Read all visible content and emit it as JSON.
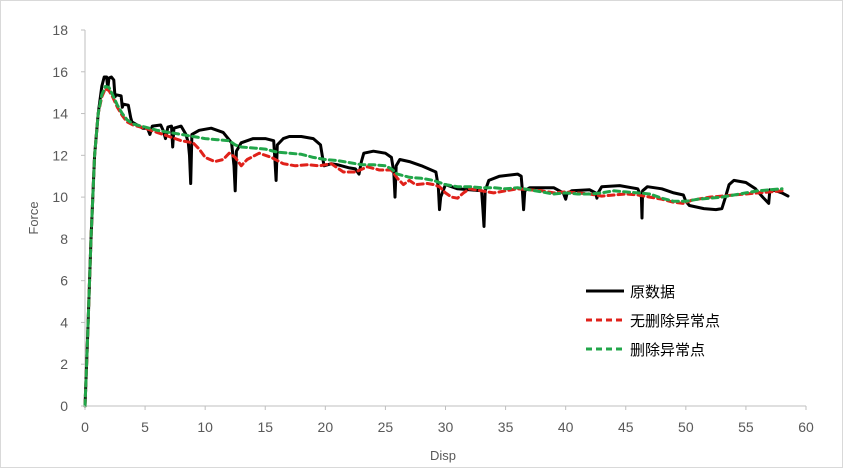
{
  "chart_data": {
    "type": "line",
    "title": "",
    "xlabel": "Disp",
    "ylabel": "Force",
    "xlim": [
      0,
      60
    ],
    "ylim": [
      0,
      18
    ],
    "xticks": [
      "0",
      "5",
      "10",
      "15",
      "20",
      "25",
      "30",
      "35",
      "40",
      "45",
      "50",
      "55",
      "60"
    ],
    "yticks": [
      "0",
      "2",
      "4",
      "6",
      "8",
      "10",
      "12",
      "14",
      "16",
      "18"
    ],
    "grid": false,
    "legend_position": "right",
    "series": [
      {
        "name": "原数据",
        "color": "#000000",
        "style": "solid",
        "points": [
          [
            0,
            0
          ],
          [
            0.2,
            3
          ],
          [
            0.5,
            8
          ],
          [
            0.8,
            12
          ],
          [
            1.1,
            14
          ],
          [
            1.4,
            15.3
          ],
          [
            1.6,
            15.75
          ],
          [
            1.8,
            15.75
          ],
          [
            1.9,
            15.2
          ],
          [
            2.0,
            15.7
          ],
          [
            2.2,
            15.75
          ],
          [
            2.4,
            15.6
          ],
          [
            2.5,
            14.8
          ],
          [
            2.6,
            14.9
          ],
          [
            3.0,
            14.85
          ],
          [
            3.1,
            14.3
          ],
          [
            3.2,
            14.45
          ],
          [
            3.6,
            14.4
          ],
          [
            3.8,
            13.8
          ],
          [
            3.9,
            13.6
          ],
          [
            4.2,
            13.5
          ],
          [
            4.5,
            13.4
          ],
          [
            4.8,
            13.3
          ],
          [
            5.2,
            13.3
          ],
          [
            5.4,
            13.0
          ],
          [
            5.6,
            13.4
          ],
          [
            6.3,
            13.45
          ],
          [
            6.5,
            13.2
          ],
          [
            6.7,
            12.8
          ],
          [
            6.9,
            13.35
          ],
          [
            7.2,
            13.4
          ],
          [
            7.3,
            12.4
          ],
          [
            7.4,
            13.3
          ],
          [
            8.0,
            13.4
          ],
          [
            8.4,
            13.0
          ],
          [
            8.6,
            12.6
          ],
          [
            8.7,
            12.0
          ],
          [
            8.8,
            10.65
          ],
          [
            8.9,
            13.0
          ],
          [
            9.5,
            13.2
          ],
          [
            10.5,
            13.3
          ],
          [
            11.5,
            13.1
          ],
          [
            12.2,
            12.6
          ],
          [
            12.4,
            11.5
          ],
          [
            12.5,
            10.3
          ],
          [
            12.6,
            12.2
          ],
          [
            13.0,
            12.6
          ],
          [
            14.0,
            12.8
          ],
          [
            15.0,
            12.8
          ],
          [
            15.7,
            12.7
          ],
          [
            15.8,
            11.8
          ],
          [
            15.9,
            10.8
          ],
          [
            16.0,
            12.5
          ],
          [
            16.5,
            12.8
          ],
          [
            17.0,
            12.9
          ],
          [
            18.0,
            12.9
          ],
          [
            19.0,
            12.8
          ],
          [
            19.6,
            12.5
          ],
          [
            19.8,
            11.8
          ],
          [
            19.9,
            11.5
          ],
          [
            20.5,
            11.6
          ],
          [
            21.0,
            11.55
          ],
          [
            22.0,
            11.4
          ],
          [
            22.5,
            11.35
          ],
          [
            22.8,
            11.1
          ],
          [
            23.0,
            11.7
          ],
          [
            23.2,
            12.1
          ],
          [
            24.0,
            12.2
          ],
          [
            25.0,
            12.1
          ],
          [
            25.5,
            11.9
          ],
          [
            25.7,
            11.2
          ],
          [
            25.8,
            10.0
          ],
          [
            25.9,
            11.5
          ],
          [
            26.2,
            11.8
          ],
          [
            27.0,
            11.7
          ],
          [
            28.0,
            11.5
          ],
          [
            29.2,
            11.2
          ],
          [
            29.4,
            10.5
          ],
          [
            29.5,
            9.4
          ],
          [
            29.6,
            10.0
          ],
          [
            30.0,
            10.6
          ],
          [
            31.0,
            10.4
          ],
          [
            32.0,
            10.35
          ],
          [
            33.0,
            10.3
          ],
          [
            33.1,
            9.5
          ],
          [
            33.2,
            8.6
          ],
          [
            33.3,
            10.3
          ],
          [
            33.6,
            10.8
          ],
          [
            34.5,
            11.0
          ],
          [
            36.0,
            11.1
          ],
          [
            36.3,
            11.0
          ],
          [
            36.4,
            10.3
          ],
          [
            36.5,
            9.4
          ],
          [
            36.6,
            10.3
          ],
          [
            37.0,
            10.45
          ],
          [
            39.0,
            10.45
          ],
          [
            39.8,
            10.2
          ],
          [
            40.0,
            9.9
          ],
          [
            40.1,
            10.15
          ],
          [
            40.5,
            10.3
          ],
          [
            42.0,
            10.35
          ],
          [
            42.5,
            10.2
          ],
          [
            42.6,
            9.95
          ],
          [
            42.7,
            10.2
          ],
          [
            43.0,
            10.5
          ],
          [
            44.5,
            10.55
          ],
          [
            46.0,
            10.4
          ],
          [
            46.3,
            10.0
          ],
          [
            46.35,
            9.0
          ],
          [
            46.4,
            10.3
          ],
          [
            46.8,
            10.5
          ],
          [
            48.0,
            10.4
          ],
          [
            49.0,
            10.2
          ],
          [
            49.8,
            10.1
          ],
          [
            50.0,
            9.8
          ],
          [
            50.3,
            9.6
          ],
          [
            51.5,
            9.45
          ],
          [
            52.5,
            9.4
          ],
          [
            53.0,
            9.45
          ],
          [
            53.3,
            10.0
          ],
          [
            53.6,
            10.6
          ],
          [
            54.0,
            10.8
          ],
          [
            55.0,
            10.7
          ],
          [
            55.8,
            10.4
          ],
          [
            56.4,
            10.0
          ],
          [
            56.9,
            9.7
          ],
          [
            57.0,
            10.35
          ],
          [
            57.5,
            10.3
          ],
          [
            58.0,
            10.2
          ],
          [
            58.5,
            10.05
          ]
        ]
      },
      {
        "name": "无删除异常点",
        "color": "#e0211a",
        "style": "dashed",
        "points": [
          [
            0,
            0
          ],
          [
            0.2,
            3
          ],
          [
            0.5,
            8
          ],
          [
            0.8,
            12
          ],
          [
            1.1,
            14
          ],
          [
            1.4,
            14.8
          ],
          [
            1.7,
            15.2
          ],
          [
            2.0,
            15.1
          ],
          [
            2.3,
            14.8
          ],
          [
            2.7,
            14.3
          ],
          [
            3.1,
            13.9
          ],
          [
            3.5,
            13.6
          ],
          [
            4.0,
            13.45
          ],
          [
            5.0,
            13.3
          ],
          [
            6.0,
            13.1
          ],
          [
            7.0,
            12.9
          ],
          [
            8.0,
            12.7
          ],
          [
            9.0,
            12.6
          ],
          [
            9.5,
            12.3
          ],
          [
            10.0,
            11.9
          ],
          [
            10.8,
            11.7
          ],
          [
            11.5,
            11.8
          ],
          [
            12.0,
            12.1
          ],
          [
            12.5,
            11.9
          ],
          [
            13.0,
            11.5
          ],
          [
            13.5,
            11.8
          ],
          [
            14.5,
            12.1
          ],
          [
            15.5,
            11.9
          ],
          [
            16.5,
            11.6
          ],
          [
            17.5,
            11.5
          ],
          [
            18.5,
            11.55
          ],
          [
            19.5,
            11.5
          ],
          [
            20.5,
            11.6
          ],
          [
            21.5,
            11.2
          ],
          [
            22.5,
            11.2
          ],
          [
            23.5,
            11.45
          ],
          [
            24.5,
            11.3
          ],
          [
            25.5,
            11.3
          ],
          [
            26.0,
            10.9
          ],
          [
            26.5,
            10.6
          ],
          [
            27.0,
            10.8
          ],
          [
            27.5,
            10.6
          ],
          [
            28.5,
            10.65
          ],
          [
            29.0,
            10.6
          ],
          [
            29.5,
            10.5
          ],
          [
            30.0,
            10.2
          ],
          [
            30.5,
            10.0
          ],
          [
            31.0,
            9.95
          ],
          [
            31.5,
            10.2
          ],
          [
            32.0,
            10.4
          ],
          [
            33.0,
            10.3
          ],
          [
            34.0,
            10.2
          ],
          [
            35.0,
            10.3
          ],
          [
            36.0,
            10.4
          ],
          [
            37.0,
            10.35
          ],
          [
            38.0,
            10.3
          ],
          [
            39.0,
            10.2
          ],
          [
            40.0,
            10.25
          ],
          [
            41.0,
            10.2
          ],
          [
            42.0,
            10.15
          ],
          [
            43.0,
            10.05
          ],
          [
            44.0,
            10.1
          ],
          [
            45.0,
            10.15
          ],
          [
            46.0,
            10.1
          ],
          [
            47.0,
            10.0
          ],
          [
            48.0,
            9.9
          ],
          [
            49.0,
            9.75
          ],
          [
            49.8,
            9.7
          ],
          [
            50.5,
            9.85
          ],
          [
            51.0,
            9.9
          ],
          [
            52.0,
            10.0
          ],
          [
            53.0,
            10.05
          ],
          [
            54.0,
            10.1
          ],
          [
            55.0,
            10.15
          ],
          [
            56.0,
            10.2
          ],
          [
            57.0,
            10.25
          ],
          [
            58.0,
            10.3
          ]
        ]
      },
      {
        "name": "删除异常点",
        "color": "#21a64a",
        "style": "dashed",
        "points": [
          [
            0,
            0
          ],
          [
            0.2,
            3
          ],
          [
            0.5,
            8
          ],
          [
            0.8,
            12
          ],
          [
            1.1,
            14
          ],
          [
            1.4,
            14.9
          ],
          [
            1.7,
            15.3
          ],
          [
            2.0,
            15.25
          ],
          [
            2.3,
            14.9
          ],
          [
            2.7,
            14.4
          ],
          [
            3.1,
            14.0
          ],
          [
            3.5,
            13.7
          ],
          [
            4.0,
            13.5
          ],
          [
            5.0,
            13.35
          ],
          [
            6.0,
            13.2
          ],
          [
            7.0,
            13.1
          ],
          [
            8.0,
            13.0
          ],
          [
            9.0,
            12.9
          ],
          [
            10.0,
            12.8
          ],
          [
            11.0,
            12.75
          ],
          [
            12.0,
            12.7
          ],
          [
            12.5,
            12.5
          ],
          [
            13.0,
            12.4
          ],
          [
            14.0,
            12.35
          ],
          [
            15.0,
            12.3
          ],
          [
            16.0,
            12.15
          ],
          [
            17.0,
            12.1
          ],
          [
            18.0,
            12.05
          ],
          [
            19.0,
            11.9
          ],
          [
            20.0,
            11.8
          ],
          [
            21.0,
            11.75
          ],
          [
            22.0,
            11.65
          ],
          [
            23.0,
            11.55
          ],
          [
            24.0,
            11.55
          ],
          [
            25.0,
            11.5
          ],
          [
            25.5,
            11.35
          ],
          [
            26.0,
            11.1
          ],
          [
            27.0,
            10.95
          ],
          [
            28.0,
            10.9
          ],
          [
            29.0,
            10.8
          ],
          [
            30.0,
            10.6
          ],
          [
            31.0,
            10.5
          ],
          [
            32.0,
            10.5
          ],
          [
            33.0,
            10.45
          ],
          [
            34.0,
            10.45
          ],
          [
            35.0,
            10.4
          ],
          [
            36.0,
            10.45
          ],
          [
            37.0,
            10.35
          ],
          [
            38.0,
            10.25
          ],
          [
            39.0,
            10.15
          ],
          [
            40.0,
            10.2
          ],
          [
            41.0,
            10.15
          ],
          [
            42.0,
            10.15
          ],
          [
            43.0,
            10.2
          ],
          [
            44.0,
            10.3
          ],
          [
            45.0,
            10.25
          ],
          [
            46.0,
            10.2
          ],
          [
            47.0,
            10.15
          ],
          [
            48.0,
            9.95
          ],
          [
            49.0,
            9.8
          ],
          [
            50.0,
            9.8
          ],
          [
            51.0,
            9.9
          ],
          [
            52.0,
            9.95
          ],
          [
            53.0,
            10.0
          ],
          [
            54.0,
            10.1
          ],
          [
            55.0,
            10.2
          ],
          [
            56.0,
            10.3
          ],
          [
            57.0,
            10.35
          ],
          [
            58.0,
            10.4
          ]
        ]
      }
    ]
  }
}
